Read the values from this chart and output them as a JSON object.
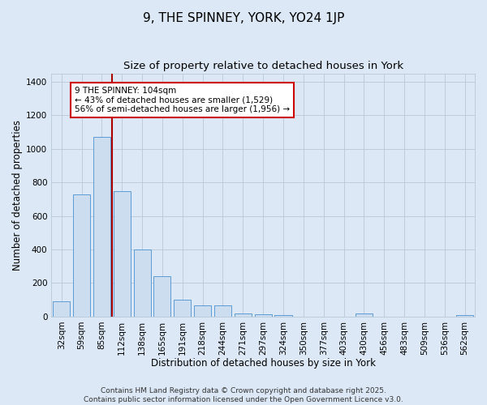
{
  "title": "9, THE SPINNEY, YORK, YO24 1JP",
  "subtitle": "Size of property relative to detached houses in York",
  "xlabel": "Distribution of detached houses by size in York",
  "ylabel": "Number of detached properties",
  "categories": [
    "32sqm",
    "59sqm",
    "85sqm",
    "112sqm",
    "138sqm",
    "165sqm",
    "191sqm",
    "218sqm",
    "244sqm",
    "271sqm",
    "297sqm",
    "324sqm",
    "350sqm",
    "377sqm",
    "403sqm",
    "430sqm",
    "456sqm",
    "483sqm",
    "509sqm",
    "536sqm",
    "562sqm"
  ],
  "values": [
    90,
    730,
    1070,
    750,
    400,
    240,
    100,
    65,
    65,
    20,
    15,
    10,
    0,
    0,
    0,
    20,
    0,
    0,
    0,
    0,
    10
  ],
  "bar_color": "#ccddf0",
  "bar_edge_color": "#5b9bd5",
  "background_color": "#dce8f5",
  "plot_bg_color": "#dce8f5",
  "grid_color": "#b8c8d8",
  "vline_x": 2.5,
  "vline_color": "#aa0000",
  "annotation_text": "9 THE SPINNEY: 104sqm\n← 43% of detached houses are smaller (1,529)\n56% of semi-detached houses are larger (1,956) →",
  "annotation_box_facecolor": "#ffffff",
  "annotation_box_edgecolor": "#cc0000",
  "footer_lines": [
    "Contains HM Land Registry data © Crown copyright and database right 2025.",
    "Contains public sector information licensed under the Open Government Licence v3.0."
  ],
  "ylim": [
    0,
    1450
  ],
  "yticks": [
    0,
    200,
    400,
    600,
    800,
    1000,
    1200,
    1400
  ],
  "title_fontsize": 11,
  "subtitle_fontsize": 9.5,
  "axis_label_fontsize": 8.5,
  "tick_fontsize": 7.5,
  "annotation_fontsize": 7.5,
  "footer_fontsize": 6.5
}
